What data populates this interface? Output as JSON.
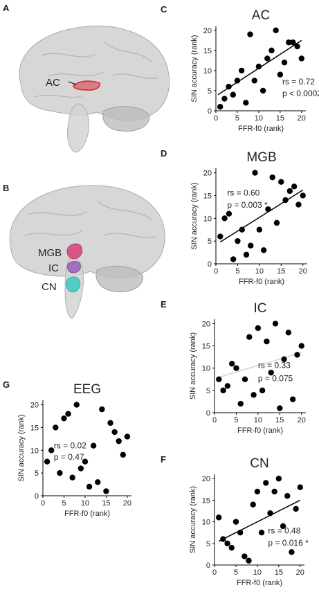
{
  "panel_letters": {
    "a": "A",
    "b": "B",
    "c": "C",
    "d": "D",
    "e": "E",
    "f": "F",
    "g": "G"
  },
  "brain_a": {
    "region_label": "AC",
    "region_color": "#e0303a"
  },
  "brain_b": {
    "labels": [
      "MGB",
      "IC",
      "CN"
    ],
    "region_colors": [
      "#d8407a",
      "#9a5cb8",
      "#38c8c0"
    ]
  },
  "colors": {
    "point": "#000000",
    "fit_line_significant": "#000000",
    "fit_line_nonsignificant": "#c8c8c8",
    "brain_fill": "#c9c9c9"
  },
  "chart_data": [
    {
      "type": "scatter",
      "panel": "C",
      "title": "AC",
      "xlabel": "FFR-f0 (rank)",
      "ylabel": "SIN accuracy (rank)",
      "xlim": [
        0,
        21
      ],
      "ylim": [
        0,
        21
      ],
      "xticks": [
        0,
        5,
        10,
        15,
        20
      ],
      "yticks": [
        0,
        5,
        10,
        15,
        20
      ],
      "points": [
        [
          1,
          1
        ],
        [
          2,
          3
        ],
        [
          3,
          6
        ],
        [
          4,
          4
        ],
        [
          5,
          7.5
        ],
        [
          6,
          10
        ],
        [
          7,
          2
        ],
        [
          8,
          19
        ],
        [
          9,
          7.5
        ],
        [
          10,
          11
        ],
        [
          11,
          5
        ],
        [
          12,
          13
        ],
        [
          13,
          15
        ],
        [
          14,
          20
        ],
        [
          15,
          9
        ],
        [
          16,
          12
        ],
        [
          17,
          17
        ],
        [
          18,
          17
        ],
        [
          19,
          16
        ],
        [
          20,
          13
        ]
      ],
      "fit_line": {
        "from": [
          0.5,
          4
        ],
        "to": [
          20,
          17.5
        ],
        "style": "significant"
      },
      "annotation": [
        "rs = 0.72",
        "p < 0.0002 *"
      ]
    },
    {
      "type": "scatter",
      "panel": "D",
      "title": "MGB",
      "xlabel": "FFR-f0 (rank)",
      "ylabel": "SIN accuracy (rank)",
      "xlim": [
        0,
        21
      ],
      "ylim": [
        0,
        21
      ],
      "xticks": [
        0,
        5,
        10,
        15,
        20
      ],
      "yticks": [
        0,
        5,
        10,
        15,
        20
      ],
      "points": [
        [
          1,
          6
        ],
        [
          2,
          10
        ],
        [
          3,
          11
        ],
        [
          4,
          1
        ],
        [
          5,
          5
        ],
        [
          6,
          7.5
        ],
        [
          7,
          2
        ],
        [
          8,
          4
        ],
        [
          9,
          20
        ],
        [
          10,
          7.5
        ],
        [
          11,
          3
        ],
        [
          12,
          12
        ],
        [
          13,
          19
        ],
        [
          14,
          9
        ],
        [
          15,
          18
        ],
        [
          16,
          14
        ],
        [
          17,
          16
        ],
        [
          18,
          17
        ],
        [
          19,
          13
        ],
        [
          20,
          15
        ]
      ],
      "fit_line": {
        "from": [
          1,
          4.8
        ],
        "to": [
          20,
          16.2
        ],
        "style": "significant"
      },
      "annotation": [
        "rs = 0.60",
        "p = 0.003 *"
      ]
    },
    {
      "type": "scatter",
      "panel": "E",
      "title": "IC",
      "xlabel": "FFR-f0 (rank)",
      "ylabel": "SIN accuracy (rank)",
      "xlim": [
        0,
        21
      ],
      "ylim": [
        0,
        21
      ],
      "xticks": [
        0,
        5,
        10,
        15,
        20
      ],
      "yticks": [
        0,
        5,
        10,
        15,
        20
      ],
      "points": [
        [
          1,
          7.5
        ],
        [
          2,
          5
        ],
        [
          3,
          6
        ],
        [
          4,
          11
        ],
        [
          5,
          10
        ],
        [
          6,
          2
        ],
        [
          7,
          7.5
        ],
        [
          8,
          17
        ],
        [
          9,
          4
        ],
        [
          10,
          19
        ],
        [
          11,
          5
        ],
        [
          12,
          16
        ],
        [
          13,
          9
        ],
        [
          14,
          20
        ],
        [
          15,
          1
        ],
        [
          16,
          12
        ],
        [
          17,
          18
        ],
        [
          18,
          3
        ],
        [
          19,
          13
        ],
        [
          20,
          15
        ]
      ],
      "fit_line": {
        "from": [
          0.5,
          7.8
        ],
        "to": [
          20,
          13.5
        ],
        "style": "nonsignificant"
      },
      "annotation": [
        "rs = 0.33",
        "p = 0.075"
      ]
    },
    {
      "type": "scatter",
      "panel": "F",
      "title": "CN",
      "xlabel": "FFR-f0 (rank)",
      "ylabel": "SIN accuracy (rank)",
      "xlim": [
        0,
        21
      ],
      "ylim": [
        0,
        21
      ],
      "xticks": [
        0,
        5,
        10,
        15,
        20
      ],
      "yticks": [
        0,
        5,
        10,
        15,
        20
      ],
      "points": [
        [
          1,
          11
        ],
        [
          2,
          6
        ],
        [
          3,
          5
        ],
        [
          4,
          4
        ],
        [
          5,
          10
        ],
        [
          6,
          7.5
        ],
        [
          7,
          2
        ],
        [
          8,
          1
        ],
        [
          9,
          14
        ],
        [
          10,
          17
        ],
        [
          11,
          7.5
        ],
        [
          12,
          19
        ],
        [
          13,
          12
        ],
        [
          14,
          17
        ],
        [
          15,
          20
        ],
        [
          16,
          9
        ],
        [
          17,
          16
        ],
        [
          18,
          3
        ],
        [
          19,
          13
        ],
        [
          20,
          18
        ]
      ],
      "fit_line": {
        "from": [
          1,
          5.5
        ],
        "to": [
          20,
          15
        ],
        "style": "significant"
      },
      "annotation": [
        "rs = 0.48",
        "p = 0.016 *"
      ]
    },
    {
      "type": "scatter",
      "panel": "G",
      "title": "EEG",
      "xlabel": "FFR-f0 (rank)",
      "ylabel": "SIN accuracy (rank)",
      "xlim": [
        0,
        21
      ],
      "ylim": [
        0,
        21
      ],
      "xticks": [
        0,
        5,
        10,
        15,
        20
      ],
      "yticks": [
        0,
        5,
        10,
        15,
        20
      ],
      "points": [
        [
          1,
          7.5
        ],
        [
          2,
          10
        ],
        [
          3,
          15
        ],
        [
          4,
          5
        ],
        [
          5,
          17
        ],
        [
          6,
          18
        ],
        [
          7,
          4
        ],
        [
          8,
          20
        ],
        [
          9,
          6
        ],
        [
          10,
          7.5
        ],
        [
          11,
          2
        ],
        [
          12,
          11
        ],
        [
          13,
          3
        ],
        [
          14,
          19
        ],
        [
          15,
          1
        ],
        [
          16,
          16
        ],
        [
          17,
          14
        ],
        [
          18,
          12
        ],
        [
          19,
          9
        ],
        [
          20,
          13
        ]
      ],
      "fit_line": null,
      "annotation": [
        "rs = 0.02",
        "p = 0.47"
      ]
    }
  ]
}
